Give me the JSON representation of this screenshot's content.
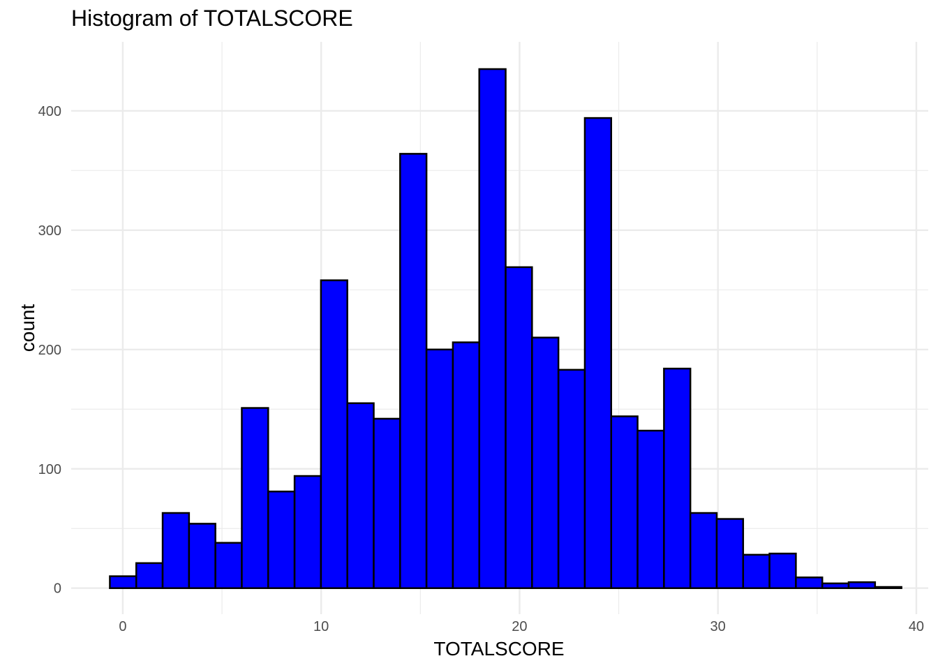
{
  "chart_data": {
    "type": "bar",
    "title": "Histogram of TOTALSCORE",
    "xlabel": "TOTALSCORE",
    "ylabel": "count",
    "bin_width": 1.33,
    "bin_start": -0.65,
    "values": [
      10,
      21,
      63,
      54,
      38,
      151,
      81,
      94,
      258,
      155,
      142,
      364,
      200,
      206,
      435,
      269,
      210,
      183,
      394,
      144,
      132,
      184,
      63,
      58,
      28,
      29,
      9,
      4,
      5,
      1
    ],
    "xlim": [
      -2.6,
      40.6
    ],
    "ylim": [
      -21.8,
      457.8
    ],
    "x_ticks": [
      0,
      10,
      20,
      30,
      40
    ],
    "y_ticks": [
      0,
      100,
      200,
      300,
      400
    ],
    "x_ticks_minor": [
      5,
      15,
      25,
      35
    ],
    "y_ticks_minor": [
      50,
      150,
      250,
      350
    ],
    "bar_fill": "#0000ff",
    "bar_stroke": "#000000",
    "grid": true,
    "grid_color": "#ebebeb"
  }
}
